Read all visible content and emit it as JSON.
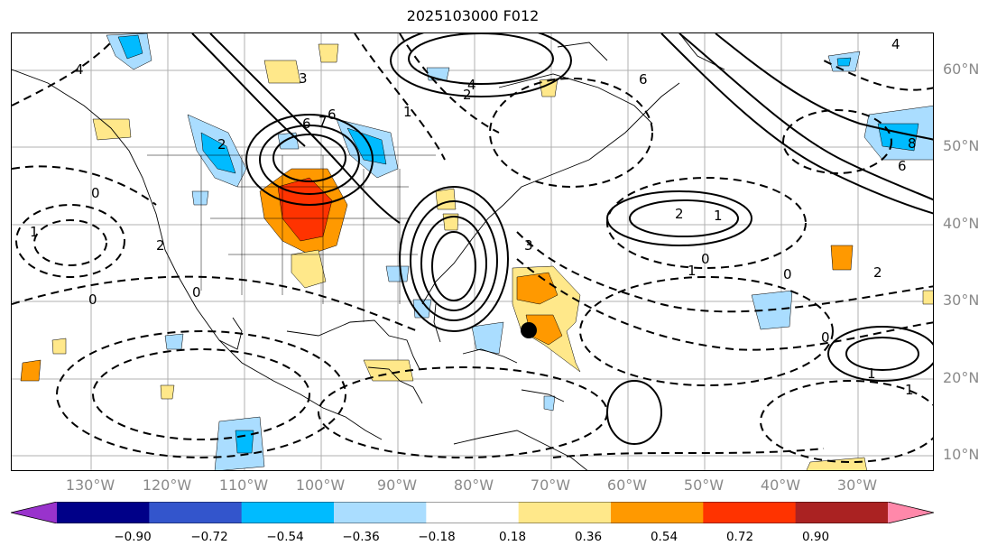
{
  "title": "2025103000 F012",
  "lat_labels": [
    "60°N",
    "50°N",
    "40°N",
    "30°N",
    "20°N",
    "10°N"
  ],
  "lon_labels": [
    "130°W",
    "120°W",
    "110°W",
    "100°W",
    "90°W",
    "80°W",
    "70°W",
    "60°W",
    "50°W",
    "40°W",
    "30°W"
  ],
  "colorbar": {
    "ticks": [
      "−0.90",
      "−0.72",
      "−0.54",
      "−0.36",
      "−0.18",
      "0.18",
      "0.36",
      "0.54",
      "0.72",
      "0.90"
    ],
    "colors": [
      "#9933cc",
      "#000088",
      "#3355cc",
      "#00bbff",
      "#aaddff",
      "#ffffff",
      "#ffe88a",
      "#ff9900",
      "#ff3300",
      "#aa2222",
      "#ff88aa"
    ],
    "extend": "both"
  },
  "contour_labels": [
    "4",
    "6",
    "3",
    "2",
    "1",
    "0",
    "6",
    "7",
    "4",
    "6",
    "4",
    "8",
    "6",
    "2",
    "1",
    "0",
    "3",
    "2",
    "1",
    "0",
    "2",
    "0",
    "1",
    "2",
    "0",
    "1",
    "0",
    "1"
  ],
  "marker": "storm-center-dot"
}
